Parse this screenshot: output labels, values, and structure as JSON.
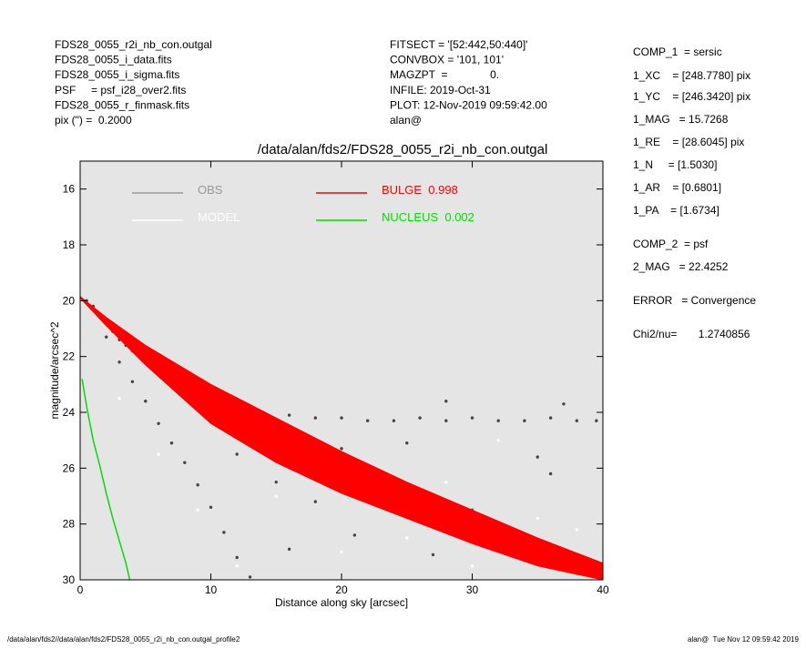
{
  "header": {
    "left": [
      "FDS28_0055_r2i_nb_con.outgal",
      "FDS28_0055_i_data.fits",
      "FDS28_0055_i_sigma.fits",
      "PSF     = psf_i28_over2.fits",
      "FDS28_0055_r_finmask.fits",
      "pix (\") =  0.2000"
    ],
    "middle": [
      "FITSECT = '[52:442,50:440]'",
      "CONVBOX = '101, 101'",
      "MAGZPT  =              0.",
      "INFILE: 2019-Oct-31",
      "PLOT: 12-Nov-2019 09:59:42.00",
      "alan@"
    ],
    "right": [
      "COMP_1  = sersic",
      "1_XC    = [248.7780] pix",
      "1_YC    = [246.3420] pix",
      "1_MAG   = 15.7268",
      "1_RE    = [28.6045] pix",
      "1_N     = [1.5030]",
      "1_AR    = [0.6801]",
      "1_PA    = [1.6734]",
      "COMP_2  = psf",
      "2_MAG   = 22.4252",
      "ERROR   = Convergence",
      "Chi2/nu=       1.2740856"
    ]
  },
  "footer": {
    "left": "/data/alan/fds2//data/alan/fds2/FDS28_0055_r2i_nb_con.outgal_profile2",
    "right": "alan@  Tue Nov 12 09:59:42 2019"
  },
  "chart_data": {
    "type": "scatter",
    "title": "/data/alan/fds2/FDS28_0055_r2i_nb_con.outgal",
    "xlabel": "Distance along sky [arcsec]",
    "ylabel": "magnitude/arcsec^2",
    "xlim": [
      0,
      40
    ],
    "xticks": [
      0,
      10,
      20,
      30,
      40
    ],
    "ylim": [
      15,
      30
    ],
    "y_inverted": true,
    "yticks": [
      16,
      18,
      20,
      22,
      24,
      26,
      28,
      30
    ],
    "background": "#e5e5e5",
    "series": [
      {
        "name": "OBS",
        "type": "scatter",
        "color": "#444444",
        "legend_color": "#999999",
        "x": [
          0.5,
          1,
          1.5,
          2,
          2.5,
          3,
          3.5,
          4,
          4.5,
          5,
          5.5,
          6,
          7,
          8,
          9,
          10,
          11,
          12,
          14,
          16,
          18,
          20,
          22,
          24,
          26,
          28,
          30,
          32,
          34,
          36,
          38,
          39.5,
          2,
          3,
          4,
          5,
          6,
          7,
          8,
          9,
          10,
          11,
          12,
          13,
          15,
          18,
          21,
          24,
          27,
          30,
          33,
          36,
          38,
          20,
          25,
          35,
          28,
          37,
          12,
          16
        ],
        "values": [
          20.0,
          20.2,
          20.5,
          20.8,
          21.1,
          21.4,
          21.6,
          21.8,
          22.0,
          22.1,
          22.2,
          22.3,
          22.5,
          22.8,
          23.1,
          23.4,
          23.6,
          23.8,
          24.0,
          24.1,
          24.2,
          24.2,
          24.3,
          24.3,
          24.2,
          24.3,
          24.2,
          24.3,
          24.3,
          24.2,
          24.3,
          24.3,
          21.3,
          22.2,
          22.9,
          23.6,
          24.4,
          25.1,
          25.8,
          26.6,
          27.4,
          28.3,
          29.2,
          29.9,
          26.5,
          27.2,
          28.4,
          26.8,
          29.1,
          27.5,
          28.8,
          26.2,
          29.4,
          25.3,
          25.1,
          25.6,
          23.6,
          23.7,
          25.5,
          28.9
        ]
      },
      {
        "name": "MODEL",
        "type": "scatter",
        "color": "#ffffff",
        "legend_color": "#ffffff",
        "x": [
          3,
          6,
          9,
          15,
          20,
          25,
          30,
          35,
          12,
          18,
          28,
          38,
          32,
          23
        ],
        "values": [
          23.5,
          25.5,
          27.5,
          27.0,
          29.0,
          28.5,
          29.5,
          27.8,
          29.5,
          25.8,
          26.5,
          28.2,
          25.0,
          27.2
        ]
      },
      {
        "name": "BULGE  0.998",
        "type": "area",
        "color": "#ff0000",
        "legend_color": "#ff0000",
        "x": [
          0,
          2,
          5,
          10,
          15,
          20,
          25,
          30,
          35,
          40
        ],
        "values": [
          19.85,
          20.6,
          21.6,
          23.0,
          24.2,
          25.4,
          26.5,
          27.5,
          28.5,
          29.4
        ],
        "lower": [
          19.9,
          20.9,
          22.3,
          24.4,
          25.8,
          26.9,
          27.8,
          28.7,
          29.5,
          30.0
        ]
      },
      {
        "name": "NUCLEUS  0.002",
        "type": "line",
        "color": "#00dd00",
        "legend_color": "#00dd00",
        "x": [
          0.15,
          0.5,
          1,
          1.5,
          2,
          2.5,
          3,
          3.5,
          3.8
        ],
        "values": [
          22.8,
          23.8,
          25.0,
          25.9,
          26.9,
          27.8,
          28.6,
          29.4,
          30.0
        ]
      }
    ]
  }
}
